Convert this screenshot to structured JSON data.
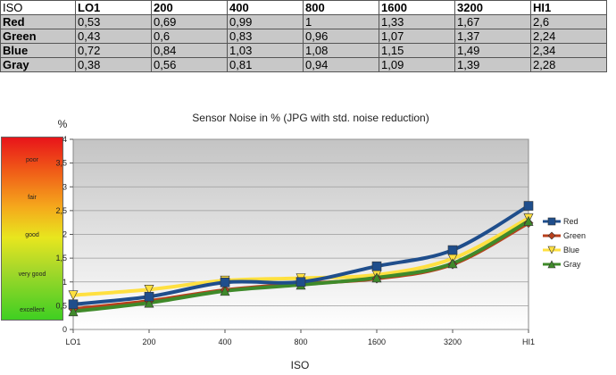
{
  "table": {
    "corner": "ISO",
    "columns": [
      "LO1",
      "200",
      "400",
      "800",
      "1600",
      "3200",
      "HI1"
    ],
    "rows": [
      {
        "label": "Red",
        "cells": [
          "0,53",
          "0,69",
          "0,99",
          "1",
          "1,33",
          "1,67",
          "2,6"
        ]
      },
      {
        "label": "Green",
        "cells": [
          "0,43",
          "0,6",
          "0,83",
          "0,96",
          "1,07",
          "1,37",
          "2,24"
        ]
      },
      {
        "label": "Blue",
        "cells": [
          "0,72",
          "0,84",
          "1,03",
          "1,08",
          "1,15",
          "1,49",
          "2,34"
        ]
      },
      {
        "label": "Gray",
        "cells": [
          "0,38",
          "0,56",
          "0,81",
          "0,94",
          "1,09",
          "1,39",
          "2,28"
        ]
      }
    ]
  },
  "quality_scale": {
    "labels": [
      "poor",
      "fair",
      "good",
      "very good",
      "excellent"
    ]
  },
  "chart_data": {
    "type": "line",
    "title": "Sensor Noise in % (JPG with std. noise reduction)",
    "xlabel": "ISO",
    "ylabel": "%",
    "categories": [
      "LO1",
      "200",
      "400",
      "800",
      "1600",
      "3200",
      "HI1"
    ],
    "ylim": [
      0,
      4
    ],
    "yticks": [
      "0",
      "0,5",
      "1",
      "1,5",
      "2",
      "2,5",
      "3",
      "3,5",
      "4"
    ],
    "grid": true,
    "legend": "right",
    "series": [
      {
        "name": "Red",
        "color": "#1f4e8c",
        "marker": "square",
        "values": [
          0.53,
          0.69,
          0.99,
          1.0,
          1.33,
          1.67,
          2.6
        ]
      },
      {
        "name": "Green",
        "color": "#b8401c",
        "marker": "diamond",
        "values": [
          0.43,
          0.6,
          0.83,
          0.96,
          1.07,
          1.37,
          2.24
        ]
      },
      {
        "name": "Blue",
        "color": "#ffe040",
        "marker": "triangle-down",
        "values": [
          0.72,
          0.84,
          1.03,
          1.08,
          1.15,
          1.49,
          2.34
        ]
      },
      {
        "name": "Gray",
        "color": "#3f8a2a",
        "marker": "triangle-up",
        "values": [
          0.38,
          0.56,
          0.81,
          0.94,
          1.09,
          1.39,
          2.28
        ]
      }
    ]
  }
}
